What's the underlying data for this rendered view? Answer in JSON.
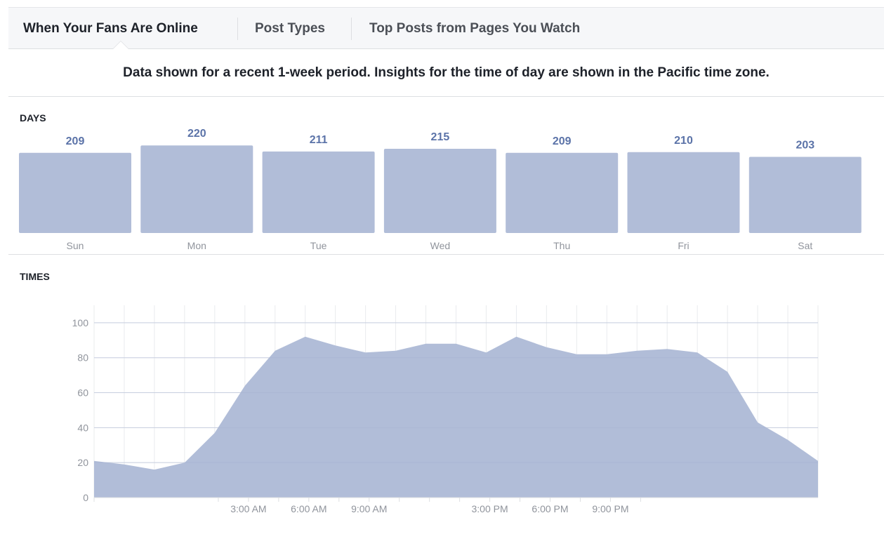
{
  "tabs": [
    {
      "label": "When Your Fans Are Online",
      "active": true
    },
    {
      "label": "Post Types",
      "active": false
    },
    {
      "label": "Top Posts from Pages You Watch",
      "active": false
    }
  ],
  "notice": "Data shown for a recent 1-week period. Insights for the time of day are shown in the Pacific time zone.",
  "days_section": {
    "label": "DAYS"
  },
  "times_section": {
    "label": "TIMES"
  },
  "colors": {
    "bar": "#b1bdd8",
    "value_label": "#5b73a8",
    "area": "#b1bdd8",
    "grid": "#e9ebee",
    "tick_text": "#90949c"
  },
  "chart_data": [
    {
      "type": "bar",
      "categories": [
        "Sun",
        "Mon",
        "Tue",
        "Wed",
        "Thu",
        "Fri",
        "Sat"
      ],
      "values": [
        209,
        220,
        211,
        215,
        209,
        210,
        203
      ],
      "data_labels": true
    },
    {
      "type": "area",
      "x_ticks": [
        "",
        "3:00 AM",
        "",
        "6:00 AM",
        "",
        "9:00 AM",
        "",
        "",
        "",
        "3:00 PM",
        "",
        "6:00 PM",
        "",
        "9:00 PM",
        ""
      ],
      "values": [
        21,
        19,
        16,
        20,
        37,
        64,
        84,
        92,
        87,
        83,
        84,
        88,
        88,
        83,
        92,
        86,
        82,
        82,
        84,
        85,
        83,
        72,
        43,
        33,
        21
      ],
      "y_ticks": [
        0,
        20,
        40,
        60,
        80,
        100
      ],
      "ylim": [
        0,
        110
      ],
      "grid": true
    }
  ]
}
